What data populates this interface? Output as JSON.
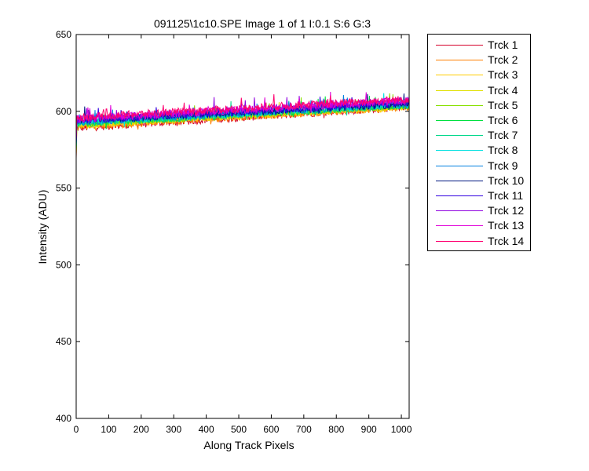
{
  "chart_data": {
    "type": "line",
    "title": "091125\\1c10.SPE  Image 1 of 1  I:0.1  S:6  G:3",
    "xlabel": "Along Track Pixels",
    "ylabel": "Intensity (ADU)",
    "xlim": [
      0,
      1024
    ],
    "ylim": [
      400,
      650
    ],
    "xticks": [
      0,
      100,
      200,
      300,
      400,
      500,
      600,
      700,
      800,
      900,
      1000
    ],
    "yticks": [
      400,
      450,
      500,
      550,
      600,
      650
    ],
    "grid": false,
    "legend_position": "outside-right",
    "series": [
      {
        "name": "Trck 1",
        "color": "#d4002a",
        "start": 589,
        "end": 603
      },
      {
        "name": "Trck 2",
        "color": "#ff7f00",
        "start": 590,
        "end": 603
      },
      {
        "name": "Trck 3",
        "color": "#ffcc00",
        "start": 591,
        "end": 603
      },
      {
        "name": "Trck 4",
        "color": "#e0e000",
        "start": 591,
        "end": 604
      },
      {
        "name": "Trck 5",
        "color": "#88e000",
        "start": 592,
        "end": 604
      },
      {
        "name": "Trck 6",
        "color": "#00e040",
        "start": 592,
        "end": 604
      },
      {
        "name": "Trck 7",
        "color": "#00d88a",
        "start": 592,
        "end": 604
      },
      {
        "name": "Trck 8",
        "color": "#00e0e0",
        "start": 593,
        "end": 605
      },
      {
        "name": "Trck 9",
        "color": "#0080e0",
        "start": 593,
        "end": 605
      },
      {
        "name": "Trck 10",
        "color": "#001880",
        "start": 594,
        "end": 605
      },
      {
        "name": "Trck 11",
        "color": "#3000e0",
        "start": 594,
        "end": 606
      },
      {
        "name": "Trck 12",
        "color": "#9000e0",
        "start": 595,
        "end": 607
      },
      {
        "name": "Trck 13",
        "color": "#e000d8",
        "start": 595,
        "end": 607
      },
      {
        "name": "Trck 14",
        "color": "#ff0070",
        "start": 596,
        "end": 608
      }
    ]
  }
}
